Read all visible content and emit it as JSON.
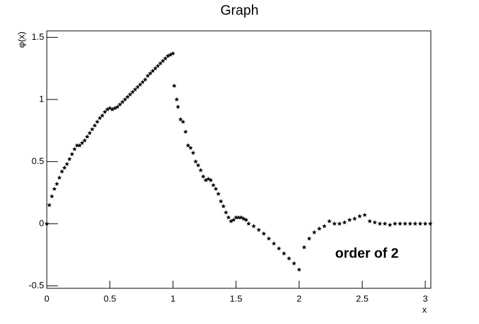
{
  "chart_data": {
    "type": "scatter",
    "title": "Graph",
    "x_label": "x",
    "y_label": "φ(x)",
    "annotation": "order of 2",
    "color": "#000000",
    "x": [
      0,
      0.02,
      0.04,
      0.06,
      0.08,
      0.1,
      0.12,
      0.14,
      0.16,
      0.18,
      0.2,
      0.22,
      0.24,
      0.26,
      0.28,
      0.3,
      0.32,
      0.34,
      0.36,
      0.38,
      0.4,
      0.42,
      0.44,
      0.46,
      0.48,
      0.5,
      0.52,
      0.54,
      0.56,
      0.58,
      0.6,
      0.62,
      0.64,
      0.66,
      0.68,
      0.7,
      0.72,
      0.74,
      0.76,
      0.78,
      0.8,
      0.82,
      0.84,
      0.86,
      0.88,
      0.9,
      0.92,
      0.94,
      0.96,
      0.98,
      1.0,
      1.01,
      1.03,
      1.04,
      1.06,
      1.08,
      1.1,
      1.12,
      1.14,
      1.16,
      1.18,
      1.2,
      1.22,
      1.24,
      1.26,
      1.28,
      1.3,
      1.32,
      1.34,
      1.36,
      1.38,
      1.4,
      1.42,
      1.44,
      1.46,
      1.48,
      1.5,
      1.52,
      1.54,
      1.56,
      1.58,
      1.6,
      1.64,
      1.68,
      1.72,
      1.76,
      1.8,
      1.84,
      1.88,
      1.92,
      1.96,
      2.0,
      2.04,
      2.08,
      2.12,
      2.16,
      2.2,
      2.24,
      2.28,
      2.32,
      2.36,
      2.4,
      2.44,
      2.48,
      2.52,
      2.56,
      2.6,
      2.64,
      2.68,
      2.72,
      2.76,
      2.8,
      2.84,
      2.88,
      2.92,
      2.96,
      3.0,
      3.04
    ],
    "values": [
      0,
      0.15,
      0.22,
      0.28,
      0.32,
      0.37,
      0.42,
      0.45,
      0.48,
      0.52,
      0.56,
      0.6,
      0.63,
      0.63,
      0.65,
      0.67,
      0.7,
      0.73,
      0.76,
      0.79,
      0.82,
      0.85,
      0.87,
      0.9,
      0.92,
      0.93,
      0.92,
      0.93,
      0.94,
      0.96,
      0.98,
      1.0,
      1.02,
      1.04,
      1.06,
      1.08,
      1.1,
      1.12,
      1.14,
      1.16,
      1.19,
      1.21,
      1.23,
      1.25,
      1.27,
      1.29,
      1.31,
      1.33,
      1.35,
      1.36,
      1.37,
      1.11,
      1.0,
      0.94,
      0.84,
      0.82,
      0.74,
      0.63,
      0.61,
      0.57,
      0.5,
      0.47,
      0.43,
      0.38,
      0.35,
      0.36,
      0.35,
      0.31,
      0.28,
      0.24,
      0.18,
      0.14,
      0.09,
      0.05,
      0.02,
      0.03,
      0.05,
      0.05,
      0.05,
      0.04,
      0.03,
      0.0,
      -0.02,
      -0.05,
      -0.08,
      -0.12,
      -0.16,
      -0.2,
      -0.24,
      -0.28,
      -0.32,
      -0.37,
      -0.19,
      -0.12,
      -0.07,
      -0.04,
      -0.02,
      0.02,
      0.0,
      0.0,
      0.01,
      0.03,
      0.04,
      0.06,
      0.07,
      0.02,
      0.01,
      0.0,
      0.0,
      -0.01,
      0.0,
      0.0,
      0.0,
      0.0,
      0.0,
      0.0,
      0.0,
      0.0
    ],
    "xlim": [
      0,
      3.044
    ],
    "ylim": [
      -0.52,
      1.552
    ],
    "xticks": [
      0,
      0.5,
      1,
      1.5,
      2,
      2.5,
      3
    ],
    "yticks": [
      -0.5,
      0,
      0.5,
      1,
      1.5
    ]
  }
}
